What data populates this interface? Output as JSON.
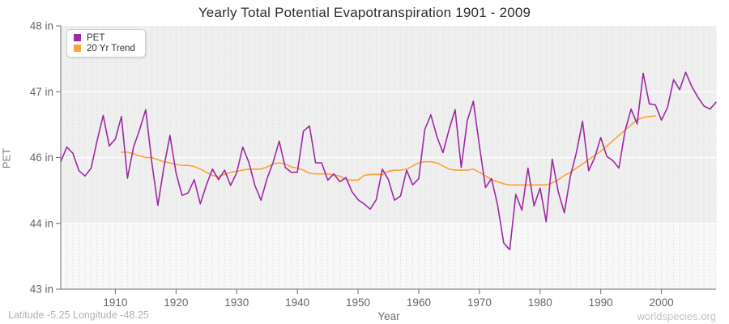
{
  "title": "Yearly Total Potential Evapotranspiration 1901 - 2009",
  "legend": {
    "items": [
      {
        "label": "PET",
        "color": "#9C2AA0"
      },
      {
        "label": "20 Yr Trend",
        "color": "#FFA033"
      }
    ]
  },
  "footer": {
    "left": "Latitude -5.25 Longitude -48.25",
    "right": "worldspecies.org"
  },
  "chart_data": {
    "type": "line",
    "title": "Yearly Total Potential Evapotranspiration 1901 - 2009",
    "xlabel": "Year",
    "ylabel": "PET",
    "xlim": [
      1901,
      2009
    ],
    "ylim": [
      43,
      48
    ],
    "grid": "on",
    "legend_position": "top-left",
    "plot_bg": "#efefef",
    "bottom_band_bg": "#f8f8f8",
    "xticks": [
      1910,
      1920,
      1930,
      1940,
      1950,
      1960,
      1970,
      1980,
      1990,
      2000
    ],
    "yticks": [
      {
        "v": 43,
        "label": "43 in"
      },
      {
        "v": 44.25,
        "label": "44 in"
      },
      {
        "v": 45.5,
        "label": "46 in"
      },
      {
        "v": 46.75,
        "label": "47 in"
      },
      {
        "v": 48,
        "label": "48 in"
      }
    ],
    "series": [
      {
        "name": "PET",
        "color": "#9C2AA0",
        "x_start": 1911,
        "comment_x_start": 1901,
        "x0": 1901,
        "values": [
          45.42,
          45.7,
          45.58,
          45.25,
          45.15,
          45.3,
          45.82,
          46.3,
          45.72,
          45.85,
          46.28,
          45.11,
          45.7,
          46.03,
          46.41,
          45.41,
          44.59,
          45.31,
          45.92,
          45.21,
          44.78,
          44.83,
          45.08,
          44.62,
          44.98,
          45.28,
          45.08,
          45.26,
          44.97,
          45.21,
          45.7,
          45.41,
          44.97,
          44.69,
          45.1,
          45.41,
          45.81,
          45.31,
          45.22,
          45.22,
          46.0,
          46.1,
          45.4,
          45.4,
          45.07,
          45.19,
          45.04,
          45.12,
          44.85,
          44.7,
          44.62,
          44.52,
          44.7,
          45.28,
          45.08,
          44.69,
          44.77,
          45.26,
          44.98,
          45.1,
          46.03,
          46.31,
          45.9,
          45.59,
          46.03,
          46.41,
          45.31,
          46.2,
          46.57,
          45.72,
          44.93,
          45.1,
          44.6,
          43.88,
          43.75,
          44.8,
          44.5,
          45.3,
          44.58,
          44.92,
          44.28,
          45.47,
          44.85,
          44.45,
          45.15,
          45.6,
          46.19,
          45.25,
          45.5,
          45.88,
          45.52,
          45.44,
          45.3,
          46.0,
          46.42,
          46.14,
          47.1,
          46.52,
          46.5,
          46.21,
          46.45,
          46.98,
          46.79,
          47.12,
          46.85,
          46.65,
          46.48,
          46.42,
          46.55
        ]
      },
      {
        "name": "20 Yr Trend",
        "color": "#FFA033",
        "x0": 1911,
        "values": [
          45.6,
          45.6,
          45.57,
          45.53,
          45.5,
          45.5,
          45.46,
          45.42,
          45.4,
          45.37,
          45.35,
          45.35,
          45.33,
          45.28,
          45.22,
          45.16,
          45.14,
          45.18,
          45.22,
          45.24,
          45.26,
          45.28,
          45.28,
          45.28,
          45.32,
          45.38,
          45.4,
          45.38,
          45.32,
          45.3,
          45.26,
          45.2,
          45.19,
          45.19,
          45.19,
          45.17,
          45.15,
          45.08,
          45.07,
          45.07,
          45.16,
          45.18,
          45.18,
          45.18,
          45.24,
          45.26,
          45.26,
          45.28,
          45.34,
          45.4,
          45.42,
          45.42,
          45.4,
          45.34,
          45.28,
          45.26,
          45.26,
          45.26,
          45.28,
          45.22,
          45.15,
          45.08,
          45.04,
          45.0,
          44.98,
          44.98,
          44.98,
          44.98,
          44.98,
          44.98,
          44.98,
          45.02,
          45.08,
          45.16,
          45.22,
          45.3,
          45.38,
          45.46,
          45.54,
          45.62,
          45.72,
          45.82,
          45.92,
          46.02,
          46.12,
          46.22,
          46.26,
          46.28,
          46.29
        ]
      }
    ]
  }
}
